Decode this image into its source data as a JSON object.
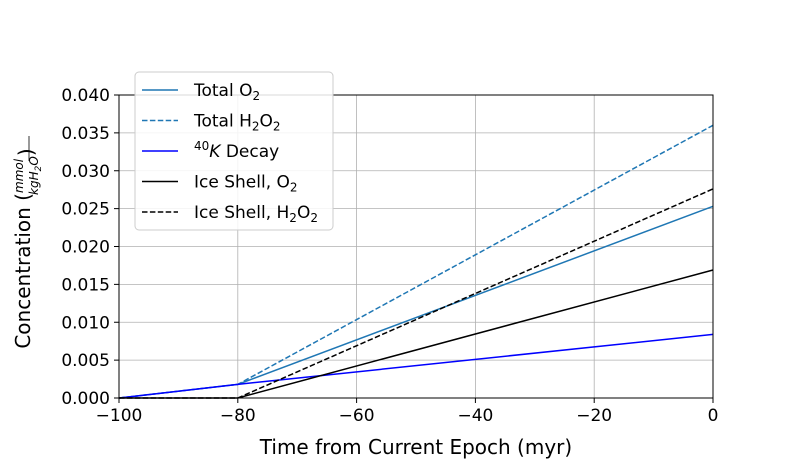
{
  "chart_data": {
    "type": "line",
    "xlabel": "Time from Current Epoch (myr)",
    "ylabel": "Concentration (mmol/kgH2O)",
    "ylabel_parts": {
      "prefix": "Concentration (",
      "numerator": "mmol",
      "denominator": "kgH",
      "denominator_sub": "2",
      "denominator_end": "O",
      "suffix": ")"
    },
    "xlim": [
      -100,
      0
    ],
    "ylim": [
      0,
      0.04
    ],
    "xticks": [
      -100,
      -80,
      -60,
      -40,
      -20,
      0
    ],
    "xtick_labels": [
      "−100",
      "−80",
      "−60",
      "−40",
      "−20",
      "0"
    ],
    "yticks": [
      0,
      0.005,
      0.01,
      0.015,
      0.02,
      0.025,
      0.03,
      0.035,
      0.04
    ],
    "ytick_labels": [
      "0.000",
      "0.005",
      "0.010",
      "0.015",
      "0.020",
      "0.025",
      "0.030",
      "0.035",
      "0.040"
    ],
    "grid": true,
    "legend_position": "top-left",
    "series": [
      {
        "name": "Total O2",
        "legend": {
          "pre": "Total O",
          "sub": "2"
        },
        "x": [
          -100,
          -80,
          0
        ],
        "y": [
          0,
          0.0018,
          0.0253
        ],
        "color": "#1f77b4",
        "dash": "solid"
      },
      {
        "name": "Total H2O2",
        "legend": {
          "pre": "Total H",
          "sub": "2",
          "mid": "O",
          "sub2": "2"
        },
        "x": [
          -100,
          -80,
          0
        ],
        "y": [
          0,
          0.0018,
          0.036
        ],
        "color": "#1f77b4",
        "dash": "dashed"
      },
      {
        "name": "40K Decay",
        "legend": {
          "sup": "40",
          "italic": "K",
          "post": " Decay"
        },
        "x": [
          -100,
          -80,
          0
        ],
        "y": [
          0,
          0.0018,
          0.0084
        ],
        "color": "#0000ff",
        "dash": "solid"
      },
      {
        "name": "Ice Shell, O2",
        "legend": {
          "pre": "Ice Shell, O",
          "sub": "2"
        },
        "x": [
          -100,
          -80,
          0
        ],
        "y": [
          0,
          0,
          0.0169
        ],
        "color": "#000000",
        "dash": "solid"
      },
      {
        "name": "Ice Shell, H2O2",
        "legend": {
          "pre": "Ice Shell, H",
          "sub": "2",
          "mid": "O",
          "sub2": "2"
        },
        "x": [
          -100,
          -80,
          0
        ],
        "y": [
          0,
          0,
          0.0276
        ],
        "color": "#000000",
        "dash": "dashed"
      }
    ]
  }
}
